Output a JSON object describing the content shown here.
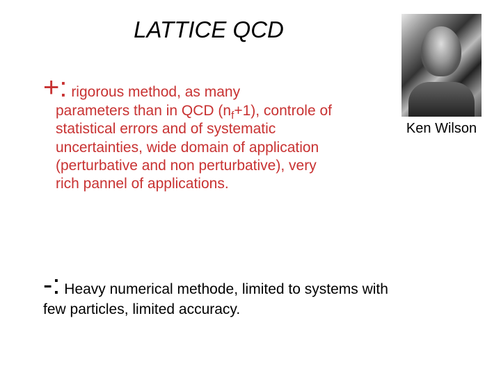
{
  "title": "LATTICE QCD",
  "photo": {
    "caption": "Ken Wilson"
  },
  "plus": {
    "sign": "+:",
    "lead": " rigorous method, as many",
    "body_before_sub": "parameters than in QCD (n",
    "sub": "f",
    "body_after_sub": "+1), controle of statistical errors and of systematic uncertainties, wide domain of application (perturbative and non perturbative), very rich pannel of applications."
  },
  "minus": {
    "sign": "-:",
    "lead": "  Heavy numerical methode, limited to systems with",
    "body": "few particles, limited accuracy."
  },
  "colors": {
    "title_color": "#000000",
    "plus_color": "#c83232",
    "minus_color": "#000000",
    "background": "#ffffff"
  }
}
